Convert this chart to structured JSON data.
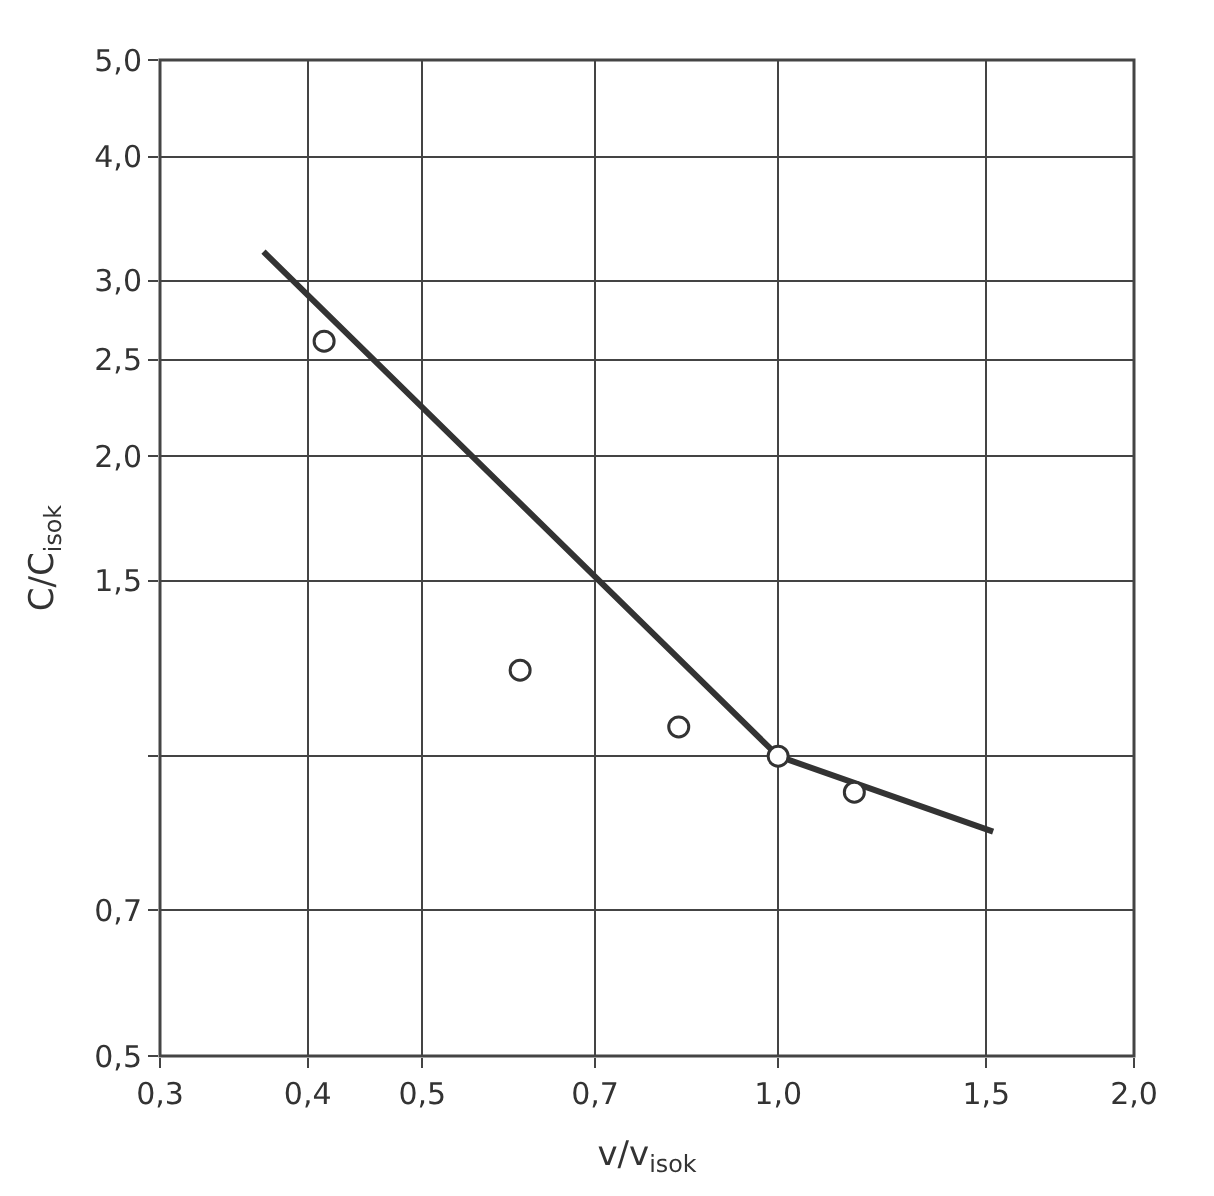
{
  "chart_data": {
    "type": "scatter",
    "xlabel": "v/v$_{isok}$",
    "ylabel": "C/C$_{isok}$",
    "log": "xy",
    "grid": true,
    "xlim": [
      0.3,
      2.0
    ],
    "xticks": [
      {
        "value": 0.3,
        "label": "0,3"
      },
      {
        "value": 0.4,
        "label": "0,4"
      },
      {
        "value": 0.5,
        "label": "0,5"
      },
      {
        "value": 0.7,
        "label": "0,7"
      },
      {
        "value": 1.0,
        "label": "1,0"
      },
      {
        "value": 1.5,
        "label": "1,5"
      },
      {
        "value": 2.0,
        "label": "2,0"
      }
    ],
    "ylim": [
      0.5,
      5.0
    ],
    "yticks": [
      {
        "value": 0.5,
        "label": "0,5"
      },
      {
        "value": 0.7,
        "label": "0,7"
      },
      {
        "value": 1.0,
        "label": null
      },
      {
        "value": 1.5,
        "label": "1,5"
      },
      {
        "value": 2.0,
        "label": "2,0"
      },
      {
        "value": 2.5,
        "label": "2,5"
      },
      {
        "value": 3.0,
        "label": "3,0"
      },
      {
        "value": 4.0,
        "label": "4,0"
      },
      {
        "value": 5.0,
        "label": "5,0"
      }
    ],
    "series": [
      {
        "type": "line",
        "color": "#333333",
        "line_style": "solid",
        "marker": "none",
        "x": [
          0.367,
          1.0,
          1.52
        ],
        "values": [
          3.21,
          1.0,
          0.84
        ]
      },
      {
        "color": "#333333",
        "marker": "circle",
        "x": [
          0.413,
          0.605,
          0.824,
          1.0,
          1.16
        ],
        "values": [
          2.61,
          1.22,
          1.07,
          1.0,
          0.92
        ]
      }
    ]
  }
}
